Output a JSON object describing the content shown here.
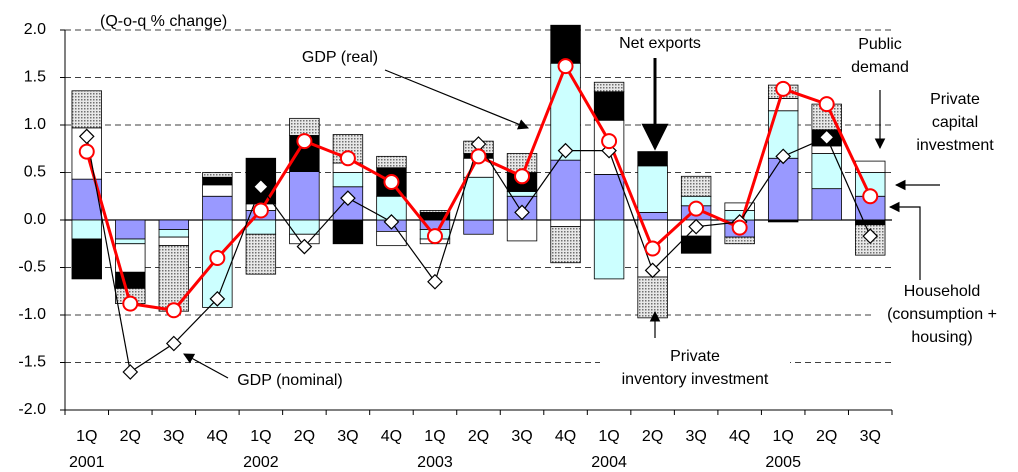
{
  "chart_data": {
    "type": "stacked_bar_line",
    "y_unit_label": "(Q-o-q % change)",
    "categories": [
      "1Q",
      "2Q",
      "3Q",
      "4Q",
      "1Q",
      "2Q",
      "3Q",
      "4Q",
      "1Q",
      "2Q",
      "3Q",
      "4Q",
      "1Q",
      "2Q",
      "3Q",
      "4Q",
      "1Q",
      "2Q",
      "3Q"
    ],
    "category_years": [
      "2001",
      null,
      null,
      null,
      "2002",
      null,
      null,
      null,
      "2003",
      null,
      null,
      null,
      "2004",
      null,
      null,
      null,
      "2005",
      null,
      null
    ],
    "series": [
      {
        "name": "Household\n(consumption +\nhousing)",
        "kind": "bar",
        "color": "#9999ff",
        "values": [
          0.43,
          -0.2,
          -0.1,
          0.25,
          0.1,
          0.51,
          0.35,
          -0.12,
          -0.1,
          -0.15,
          0.25,
          0.63,
          0.48,
          0.08,
          0.15,
          -0.18,
          0.65,
          0.33,
          0.25
        ]
      },
      {
        "name": "Private\ncapital\ninvestment",
        "kind": "bar",
        "color": "#ccffff",
        "values": [
          -0.2,
          -0.05,
          -0.08,
          -0.92,
          -0.15,
          -0.15,
          0.15,
          0.25,
          -0.1,
          0.45,
          0.05,
          1.02,
          -0.62,
          0.49,
          0.1,
          0.1,
          0.5,
          0.37,
          0.25
        ]
      },
      {
        "name": "Public\ndemand",
        "kind": "bar",
        "color": "#ffffff",
        "values": [
          0.54,
          -0.3,
          -0.09,
          0.12,
          0.07,
          -0.1,
          0.1,
          -0.15,
          -0.05,
          0.2,
          -0.22,
          -0.07,
          0.57,
          -0.6,
          -0.17,
          0.08,
          0.13,
          0.08,
          0.12
        ]
      },
      {
        "name": "Net exports",
        "kind": "bar",
        "color": "#000000",
        "values": [
          -0.42,
          -0.17,
          0,
          0.08,
          0.48,
          0.38,
          -0.25,
          0.3,
          0.08,
          0.05,
          0.2,
          0.4,
          0.3,
          0.15,
          -0.18,
          0,
          -0.02,
          0.17,
          -0.05
        ]
      },
      {
        "name": "Private\ninventory investment",
        "kind": "bar",
        "color": "#b8b8b8",
        "values": [
          0.39,
          -0.16,
          -0.69,
          0.05,
          -0.42,
          0.18,
          0.3,
          0.12,
          0.02,
          0.13,
          0.2,
          -0.38,
          0.1,
          -0.43,
          0.21,
          -0.07,
          0.14,
          0.27,
          -0.32
        ]
      },
      {
        "name": "GDP (real)",
        "kind": "line",
        "color": "#ff0000",
        "marker": "circle",
        "values": [
          0.72,
          -0.88,
          -0.95,
          -0.4,
          0.1,
          0.83,
          0.65,
          0.4,
          -0.17,
          0.67,
          0.46,
          1.62,
          0.83,
          -0.3,
          0.12,
          -0.08,
          1.38,
          1.22,
          0.25
        ]
      },
      {
        "name": "GDP (nominal)",
        "kind": "line",
        "color": "#000000",
        "marker": "diamond",
        "values": [
          0.88,
          -1.6,
          -1.3,
          -0.83,
          0.35,
          -0.28,
          0.23,
          -0.02,
          -0.65,
          0.8,
          0.08,
          0.73,
          0.73,
          -0.53,
          -0.07,
          -0.02,
          0.67,
          0.87,
          -0.17
        ]
      }
    ],
    "ylim": [
      -2,
      2
    ],
    "yticks": [
      {
        "value": -2,
        "label": "-2.0"
      },
      {
        "value": -1.5,
        "label": "-1.5"
      },
      {
        "value": -1,
        "label": "-1.0"
      },
      {
        "value": -0.5,
        "label": "-0.5"
      },
      {
        "value": 0,
        "label": "0.0"
      },
      {
        "value": 0.5,
        "label": "0.5"
      },
      {
        "value": 1,
        "label": "1.0"
      },
      {
        "value": 1.5,
        "label": "1.5"
      },
      {
        "value": 2,
        "label": "2.0"
      }
    ],
    "grid": true
  }
}
